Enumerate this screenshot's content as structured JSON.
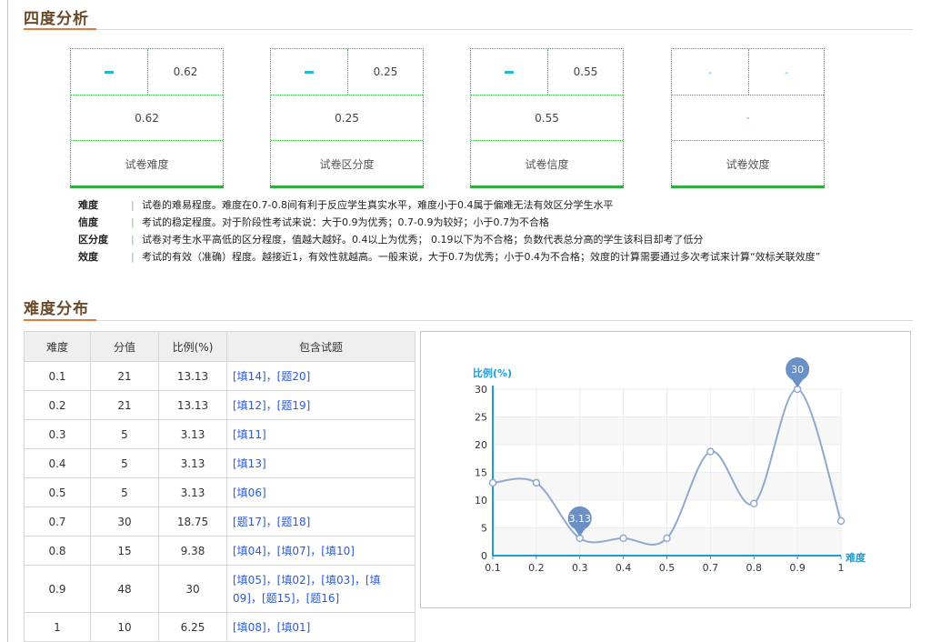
{
  "section1": {
    "title": "四度分析"
  },
  "cards": [
    {
      "top_left": "dash",
      "top_right": "0.62",
      "middle": "0.62",
      "label": "试卷难度"
    },
    {
      "top_left": "dash",
      "top_right": "0.25",
      "middle": "0.25",
      "label": "试卷区分度"
    },
    {
      "top_left": "dash",
      "top_right": "0.55",
      "middle": "0.55",
      "label": "试卷信度"
    },
    {
      "top_left": "-",
      "top_right": "-",
      "middle": "-",
      "label": "试卷效度"
    }
  ],
  "definitions": [
    {
      "term": "难度",
      "text": "试卷的难易程度。难度在0.7-0.8间有利于反应学生真实水平，难度小于0.4属于偏难无法有效区分学生水平"
    },
    {
      "term": "信度",
      "text": "考试的稳定程度。对于阶段性考试来说：大于0.9为优秀；0.7-0.9为较好；小于0.7为不合格"
    },
    {
      "term": "区分度",
      "text": "试卷对考生水平高低的区分程度，值越大越好。0.4以上为优秀；  0.19以下为不合格；负数代表总分高的学生该科目却考了低分"
    },
    {
      "term": "效度",
      "text": "考试的有效（准确）程度。越接近1，有效性就越高。一般来说，大于0.7为优秀；小于0.4为不合格；效度的计算需要通过多次考试来计算“效标关联效度”"
    }
  ],
  "section2": {
    "title": "难度分布"
  },
  "table": {
    "headers": [
      "难度",
      "分值",
      "比例(%)",
      "包含试题"
    ],
    "rows": [
      {
        "difficulty": "0.1",
        "score": "21",
        "ratio": "13.13",
        "items": "[填14]，[题20]"
      },
      {
        "difficulty": "0.2",
        "score": "21",
        "ratio": "13.13",
        "items": "[填12]，[题19]"
      },
      {
        "difficulty": "0.3",
        "score": "5",
        "ratio": "3.13",
        "items": "[填11]"
      },
      {
        "difficulty": "0.4",
        "score": "5",
        "ratio": "3.13",
        "items": "[填13]"
      },
      {
        "difficulty": "0.5",
        "score": "5",
        "ratio": "3.13",
        "items": "[填06]"
      },
      {
        "difficulty": "0.7",
        "score": "30",
        "ratio": "18.75",
        "items": "[题17]，[题18]"
      },
      {
        "difficulty": "0.8",
        "score": "15",
        "ratio": "9.38",
        "items": "[填04]，[填07]，[填10]"
      },
      {
        "difficulty": "0.9",
        "score": "48",
        "ratio": "30",
        "items": "[填05]，[填02]，[填03]，[填09]，[题15]，[题16]"
      },
      {
        "difficulty": "1",
        "score": "10",
        "ratio": "6.25",
        "items": "[填08]，[填01]"
      }
    ]
  },
  "chart_data": {
    "type": "line",
    "xlabel": "难度",
    "ylabel": "比例(%)",
    "categories": [
      "0.1",
      "0.2",
      "0.3",
      "0.4",
      "0.5",
      "0.7",
      "0.8",
      "0.9",
      "1"
    ],
    "series": [
      {
        "values": [
          13.13,
          13.13,
          3.13,
          3.13,
          3.13,
          18.75,
          9.38,
          30,
          6.25
        ]
      }
    ],
    "y_ticks": [
      0,
      5,
      10,
      15,
      20,
      25,
      30
    ],
    "ylim": [
      0,
      30
    ],
    "annotations": [
      {
        "category": "0.3",
        "label": "3.13"
      },
      {
        "category": "0.9",
        "label": "30"
      }
    ],
    "grid": true,
    "colors": {
      "line": "#8fa9cf",
      "axis": "#1f9bd7",
      "axis_text": "#1f9bd7",
      "marker_fill": "#ffffff",
      "bubble": "#6b8fc7"
    }
  }
}
